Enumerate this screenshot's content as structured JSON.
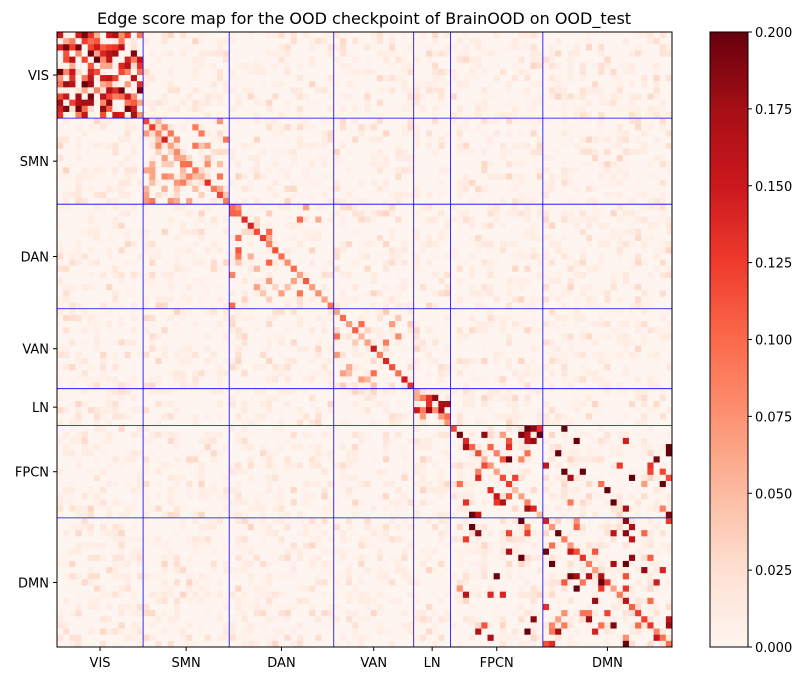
{
  "chart_data": {
    "type": "heatmap",
    "title": "Edge score map for the OOD checkpoint of BrainOOD on OOD_test",
    "xlabel": "",
    "ylabel": "",
    "colormap": "Reds",
    "matrix_size": 100,
    "networks": [
      {
        "name": "VIS",
        "start": 0,
        "end": 14
      },
      {
        "name": "SMN",
        "start": 14,
        "end": 28
      },
      {
        "name": "DAN",
        "start": 28,
        "end": 45
      },
      {
        "name": "VAN",
        "start": 45,
        "end": 58
      },
      {
        "name": "LN",
        "start": 58,
        "end": 64
      },
      {
        "name": "FPCN",
        "start": 64,
        "end": 79
      },
      {
        "name": "DMN",
        "start": 79,
        "end": 100
      }
    ],
    "hotspots": [
      {
        "row_range": [
          0,
          14
        ],
        "col_range": [
          0,
          14
        ],
        "level": 0.16,
        "density": 0.6
      },
      {
        "row_range": [
          14,
          28
        ],
        "col_range": [
          14,
          28
        ],
        "level": 0.08,
        "density": 0.25
      },
      {
        "row_range": [
          28,
          45
        ],
        "col_range": [
          28,
          45
        ],
        "level": 0.09,
        "density": 0.12
      },
      {
        "row_range": [
          45,
          58
        ],
        "col_range": [
          45,
          58
        ],
        "level": 0.08,
        "density": 0.1
      },
      {
        "row_range": [
          58,
          64
        ],
        "col_range": [
          58,
          64
        ],
        "level": 0.15,
        "density": 0.2
      },
      {
        "row_range": [
          64,
          79
        ],
        "col_range": [
          64,
          79
        ],
        "level": 0.18,
        "density": 0.15
      },
      {
        "row_range": [
          79,
          100
        ],
        "col_range": [
          79,
          100
        ],
        "level": 0.18,
        "density": 0.1
      },
      {
        "row_range": [
          64,
          79
        ],
        "col_range": [
          79,
          100
        ],
        "level": 0.18,
        "density": 0.08
      },
      {
        "row_range": [
          79,
          100
        ],
        "col_range": [
          64,
          79
        ],
        "level": 0.18,
        "density": 0.08
      }
    ],
    "colorbar": {
      "min": 0.0,
      "max": 0.2,
      "ticks": [
        "0.000",
        "0.025",
        "0.050",
        "0.075",
        "0.100",
        "0.125",
        "0.150",
        "0.175",
        "0.200"
      ]
    },
    "colors": {
      "low": "#fff5f0",
      "high": "#67000d",
      "grid_line": "#0000ff"
    }
  }
}
